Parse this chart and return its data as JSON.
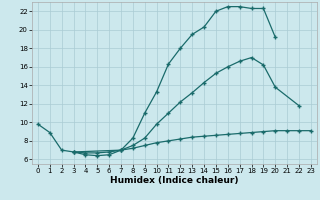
{
  "xlabel": "Humidex (Indice chaleur)",
  "bg_color": "#cce8ed",
  "grid_color": "#aaccd4",
  "line_color": "#1a6b6b",
  "xlim": [
    -0.5,
    23.5
  ],
  "ylim": [
    5.5,
    23.0
  ],
  "xticks": [
    0,
    1,
    2,
    3,
    4,
    5,
    6,
    7,
    8,
    9,
    10,
    11,
    12,
    13,
    14,
    15,
    16,
    17,
    18,
    19,
    20,
    21,
    22,
    23
  ],
  "yticks": [
    6,
    8,
    10,
    12,
    14,
    16,
    18,
    20,
    22
  ],
  "curve_upper_x": [
    0,
    1,
    2,
    3,
    4,
    5,
    6,
    7,
    8,
    9,
    10,
    11,
    12,
    13,
    14,
    15,
    16,
    17,
    18,
    19,
    20
  ],
  "curve_upper_y": [
    9.8,
    8.9,
    7.0,
    6.8,
    6.5,
    6.4,
    6.5,
    7.0,
    8.3,
    11.0,
    13.3,
    16.3,
    18.0,
    19.5,
    20.3,
    22.0,
    22.5,
    22.5,
    22.3,
    22.3,
    19.2
  ],
  "curve_mid_x": [
    3,
    7,
    8,
    9,
    10,
    11,
    12,
    13,
    14,
    15,
    16,
    17,
    18,
    19,
    20,
    22
  ],
  "curve_mid_y": [
    6.8,
    7.0,
    7.5,
    8.3,
    9.8,
    11.0,
    12.2,
    13.2,
    14.3,
    15.3,
    16.0,
    16.6,
    17.0,
    16.2,
    13.8,
    11.8
  ],
  "curve_low_x": [
    3,
    4,
    5,
    6,
    7,
    8,
    9,
    10,
    11,
    12,
    13,
    14,
    15,
    16,
    17,
    18,
    19,
    20,
    21,
    22,
    23
  ],
  "curve_low_y": [
    6.8,
    6.7,
    6.7,
    6.8,
    7.0,
    7.2,
    7.5,
    7.8,
    8.0,
    8.2,
    8.4,
    8.5,
    8.6,
    8.7,
    8.8,
    8.9,
    9.0,
    9.1,
    9.1,
    9.1,
    9.1
  ]
}
